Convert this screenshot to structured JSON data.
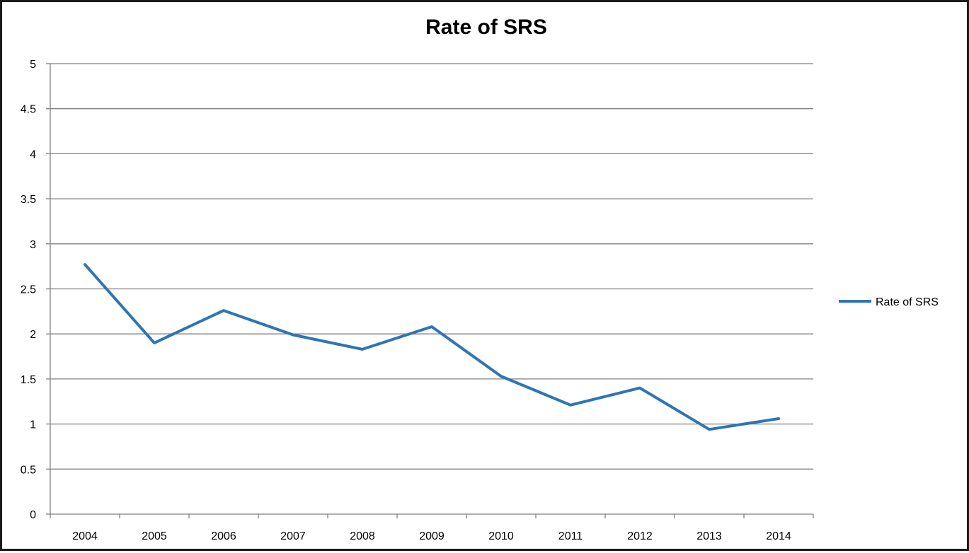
{
  "chart_data": {
    "type": "line",
    "title": "Rate of SRS",
    "xlabel": "",
    "ylabel": "",
    "categories": [
      "2004",
      "2005",
      "2006",
      "2007",
      "2008",
      "2009",
      "2010",
      "2011",
      "2012",
      "2013",
      "2014"
    ],
    "series": [
      {
        "name": "Rate of SRS",
        "color": "#2e75b6",
        "values": [
          2.77,
          1.9,
          2.26,
          1.99,
          1.83,
          2.08,
          1.53,
          1.21,
          1.4,
          0.94,
          1.06
        ]
      }
    ],
    "ylim": [
      0,
      5
    ],
    "yticks": [
      "0",
      "0.5",
      "1",
      "1.5",
      "2",
      "2.5",
      "3",
      "3.5",
      "4",
      "4.5",
      "5"
    ],
    "grid": true,
    "legend_position": "right"
  }
}
